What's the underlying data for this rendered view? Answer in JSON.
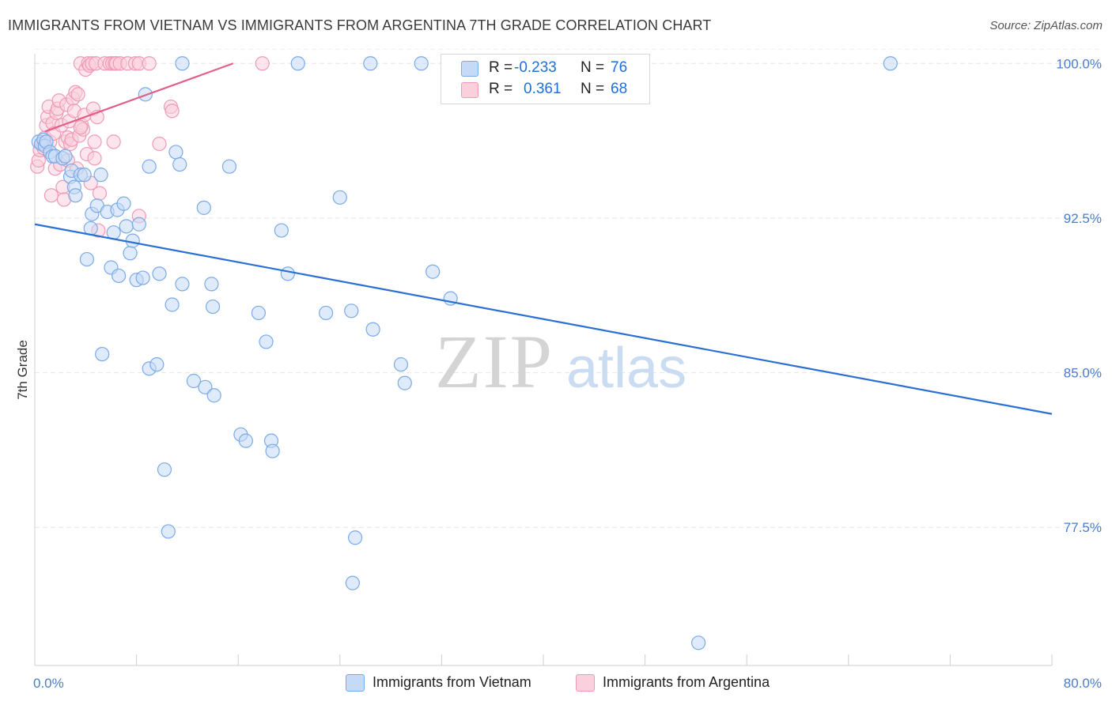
{
  "title": "IMMIGRANTS FROM VIETNAM VS IMMIGRANTS FROM ARGENTINA 7TH GRADE CORRELATION CHART",
  "source": "Source: ZipAtlas.com",
  "watermark": {
    "zip": "ZIP",
    "atlas": "atlas"
  },
  "colors": {
    "vietnam": "#7aaae8",
    "vietnam_fill": "#c5daf6",
    "vietnam_line": "#2a6fd3",
    "argentina": "#f09ab5",
    "argentina_fill": "#f9d0dc",
    "argentina_line": "#e0608a",
    "accent": "#1f6fd6"
  },
  "legend": {
    "rows": [
      {
        "r_label": "R =",
        "r_value": "-0.233",
        "n_label": "N =",
        "n_value": "76"
      },
      {
        "r_label": "R =",
        "r_value": "0.361",
        "n_label": "N =",
        "n_value": "68"
      }
    ]
  },
  "bottom_legend": {
    "vietnam": "Immigrants from Vietnam",
    "argentina": "Immigrants from Argentina"
  },
  "chart_data": {
    "type": "scatter",
    "title": "IMMIGRANTS FROM VIETNAM VS IMMIGRANTS FROM ARGENTINA 7TH GRADE CORRELATION CHART",
    "xlabel": "",
    "ylabel": "7th Grade",
    "xlim": [
      0,
      80
    ],
    "ylim": [
      70.8,
      100.7
    ],
    "x_tick_labels": [
      "0.0%",
      "80.0%"
    ],
    "y_ticks": [
      77.5,
      85.0,
      92.5,
      100.0
    ],
    "y_tick_labels": [
      "77.5%",
      "85.0%",
      "92.5%",
      "100.0%"
    ],
    "series": [
      {
        "name": "Immigrants from Vietnam",
        "r": -0.233,
        "n": 76,
        "trend": {
          "x": [
            0,
            80
          ],
          "y": [
            92.2,
            83.0
          ]
        },
        "points": [
          [
            0.3,
            96.2
          ],
          [
            0.5,
            96.1
          ],
          [
            0.7,
            96.3
          ],
          [
            0.8,
            96.0
          ],
          [
            0.9,
            96.2
          ],
          [
            1.2,
            95.7
          ],
          [
            1.4,
            95.5
          ],
          [
            1.6,
            95.5
          ],
          [
            2.2,
            95.4
          ],
          [
            2.4,
            95.5
          ],
          [
            2.8,
            94.5
          ],
          [
            2.9,
            94.8
          ],
          [
            3.1,
            94.0
          ],
          [
            3.2,
            93.6
          ],
          [
            3.6,
            94.6
          ],
          [
            3.9,
            94.6
          ],
          [
            4.1,
            90.5
          ],
          [
            4.4,
            92.0
          ],
          [
            4.5,
            92.7
          ],
          [
            4.9,
            93.1
          ],
          [
            5.2,
            94.6
          ],
          [
            5.3,
            85.9
          ],
          [
            5.7,
            92.8
          ],
          [
            6.0,
            90.1
          ],
          [
            6.2,
            91.8
          ],
          [
            6.5,
            92.9
          ],
          [
            6.6,
            89.7
          ],
          [
            7.0,
            93.2
          ],
          [
            7.2,
            92.1
          ],
          [
            7.5,
            90.8
          ],
          [
            7.7,
            91.4
          ],
          [
            8.0,
            89.5
          ],
          [
            8.2,
            92.2
          ],
          [
            8.5,
            89.6
          ],
          [
            8.7,
            98.5
          ],
          [
            9.0,
            95.0
          ],
          [
            9.0,
            85.2
          ],
          [
            9.6,
            85.4
          ],
          [
            9.8,
            89.8
          ],
          [
            10.2,
            80.3
          ],
          [
            10.5,
            77.3
          ],
          [
            10.8,
            88.3
          ],
          [
            11.1,
            95.7
          ],
          [
            11.4,
            95.1
          ],
          [
            11.6,
            89.3
          ],
          [
            11.6,
            100.0
          ],
          [
            12.5,
            84.6
          ],
          [
            13.3,
            93.0
          ],
          [
            13.4,
            84.3
          ],
          [
            13.9,
            89.3
          ],
          [
            14.0,
            88.2
          ],
          [
            14.1,
            83.9
          ],
          [
            15.3,
            95.0
          ],
          [
            16.2,
            82.0
          ],
          [
            16.6,
            81.7
          ],
          [
            17.6,
            87.9
          ],
          [
            18.2,
            86.5
          ],
          [
            18.6,
            81.7
          ],
          [
            18.7,
            81.2
          ],
          [
            19.4,
            91.9
          ],
          [
            19.9,
            89.8
          ],
          [
            20.7,
            100.0
          ],
          [
            22.9,
            87.9
          ],
          [
            24.0,
            93.5
          ],
          [
            24.9,
            88.0
          ],
          [
            25.2,
            77.0
          ],
          [
            25.0,
            74.8
          ],
          [
            26.4,
            100.0
          ],
          [
            26.6,
            87.1
          ],
          [
            28.8,
            85.4
          ],
          [
            29.1,
            84.5
          ],
          [
            30.4,
            100.0
          ],
          [
            31.3,
            89.9
          ],
          [
            32.7,
            88.6
          ],
          [
            52.2,
            71.9
          ],
          [
            67.3,
            100.0
          ]
        ]
      },
      {
        "name": "Immigrants from Argentina",
        "r": 0.361,
        "n": 68,
        "trend": {
          "x": [
            0.8,
            15.6
          ],
          "y": [
            96.7,
            100.0
          ]
        },
        "points": [
          [
            0.2,
            95.0
          ],
          [
            0.3,
            95.3
          ],
          [
            0.4,
            95.8
          ],
          [
            0.6,
            96.1
          ],
          [
            0.7,
            95.9
          ],
          [
            0.8,
            96.4
          ],
          [
            0.9,
            97.0
          ],
          [
            1.0,
            97.4
          ],
          [
            1.1,
            97.9
          ],
          [
            1.2,
            96.2
          ],
          [
            1.3,
            93.6
          ],
          [
            1.4,
            97.1
          ],
          [
            1.5,
            96.6
          ],
          [
            1.6,
            94.9
          ],
          [
            1.7,
            97.6
          ],
          [
            1.8,
            97.8
          ],
          [
            1.9,
            98.2
          ],
          [
            2.0,
            95.1
          ],
          [
            2.1,
            97.0
          ],
          [
            2.2,
            94.0
          ],
          [
            2.3,
            93.4
          ],
          [
            2.4,
            96.2
          ],
          [
            2.5,
            98.0
          ],
          [
            2.6,
            96.4
          ],
          [
            2.7,
            97.2
          ],
          [
            2.8,
            96.1
          ],
          [
            2.9,
            96.3
          ],
          [
            3.0,
            98.3
          ],
          [
            3.1,
            97.7
          ],
          [
            3.2,
            98.6
          ],
          [
            3.3,
            94.9
          ],
          [
            3.4,
            98.5
          ],
          [
            3.5,
            96.5
          ],
          [
            3.6,
            100.0
          ],
          [
            3.7,
            97.0
          ],
          [
            3.8,
            96.8
          ],
          [
            3.9,
            97.5
          ],
          [
            4.0,
            99.7
          ],
          [
            4.1,
            95.6
          ],
          [
            4.2,
            100.0
          ],
          [
            4.3,
            99.9
          ],
          [
            4.4,
            94.2
          ],
          [
            4.5,
            100.0
          ],
          [
            4.6,
            97.8
          ],
          [
            4.7,
            96.2
          ],
          [
            4.8,
            100.0
          ],
          [
            4.9,
            97.4
          ],
          [
            5.0,
            91.9
          ],
          [
            5.1,
            93.7
          ],
          [
            5.5,
            100.0
          ],
          [
            5.9,
            100.0
          ],
          [
            6.1,
            100.0
          ],
          [
            6.2,
            96.2
          ],
          [
            6.3,
            100.0
          ],
          [
            6.4,
            100.0
          ],
          [
            6.7,
            100.0
          ],
          [
            7.3,
            100.0
          ],
          [
            7.9,
            100.0
          ],
          [
            8.2,
            100.0
          ],
          [
            8.2,
            92.6
          ],
          [
            9.0,
            100.0
          ],
          [
            9.8,
            96.1
          ],
          [
            10.7,
            97.9
          ],
          [
            10.8,
            97.7
          ],
          [
            17.9,
            100.0
          ],
          [
            4.7,
            95.4
          ],
          [
            3.6,
            96.9
          ],
          [
            2.6,
            95.3
          ]
        ]
      }
    ]
  }
}
